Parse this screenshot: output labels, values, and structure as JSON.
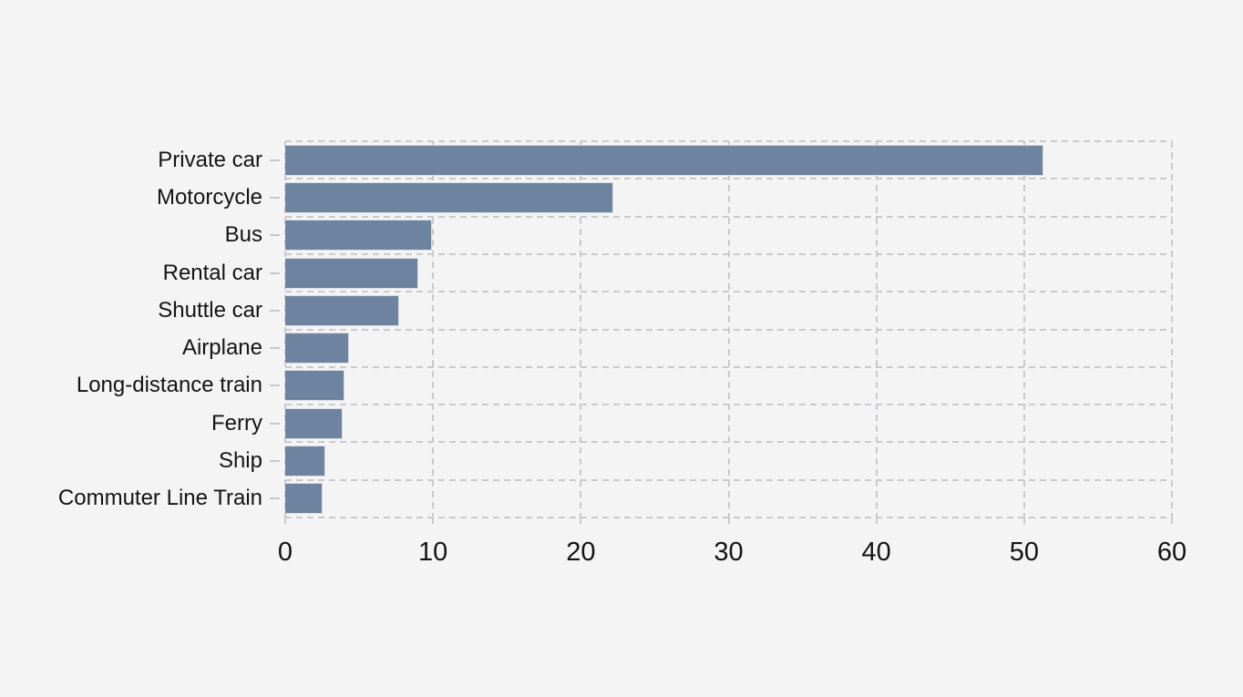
{
  "chart_data": {
    "type": "bar",
    "orientation": "horizontal",
    "title": "",
    "xlabel": "",
    "ylabel": "",
    "categories": [
      "Private car",
      "Motorcycle",
      "Bus",
      "Rental car",
      "Shuttle car",
      "Airplane",
      "Long-distance train",
      "Ferry",
      "Ship",
      "Commuter Line Train"
    ],
    "values": [
      51.3,
      22.2,
      9.9,
      9.0,
      7.7,
      4.3,
      4.0,
      3.9,
      2.7,
      2.5
    ],
    "xlim": [
      0,
      60
    ],
    "xticks": [
      0,
      10,
      20,
      30,
      40,
      50,
      60
    ],
    "grid": "dashed",
    "legend": "none",
    "colors": {
      "bar": "#6e839f",
      "bar_edge": "#d9dce4",
      "background": "#f4f4f5",
      "gridline": "#c9cacc",
      "text": "#141414"
    }
  }
}
